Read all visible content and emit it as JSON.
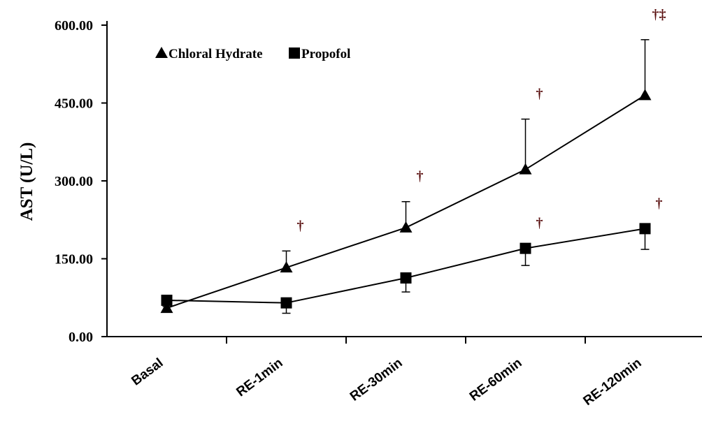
{
  "chart_data": {
    "type": "line",
    "categories": [
      "Basal",
      "RE-1min",
      "RE-30min",
      "RE-60min",
      "RE-120min"
    ],
    "ylabel": "AST (U/L)",
    "xlabel": "",
    "ylim": [
      0,
      600
    ],
    "yticks": [
      "0.00",
      "150.00",
      "300.00",
      "450.00",
      "600.00"
    ],
    "ytick_values": [
      0,
      150,
      300,
      450,
      600
    ],
    "grid": false,
    "legend": {
      "placement": "top-left",
      "orientation": "horizontal"
    },
    "series": [
      {
        "name": "Chloral Hydrate",
        "marker": "triangle",
        "values": [
          55,
          133,
          210,
          322,
          465
        ],
        "error": [
          12,
          32,
          50,
          97,
          107
        ],
        "error_direction": "up",
        "annotations": [
          "",
          "†",
          "†",
          "†",
          "†‡"
        ]
      },
      {
        "name": "Propofol",
        "marker": "square",
        "values": [
          70,
          65,
          113,
          170,
          208
        ],
        "error": [
          12,
          20,
          27,
          33,
          40
        ],
        "error_direction": "down",
        "annotations": [
          "",
          "",
          "",
          "†",
          "†"
        ]
      }
    ],
    "colors": {
      "line": "#000000",
      "annotation": "#5a1010"
    }
  }
}
